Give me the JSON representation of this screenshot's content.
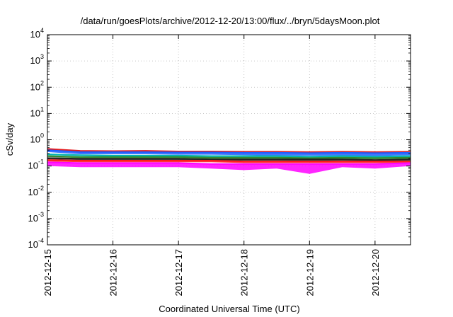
{
  "chart_data": {
    "type": "line",
    "title": "/data/run/goesPlots/archive/2012-12-20/13:00/flux/../bryn/5daysMoon.plot",
    "xlabel": "Coordinated Universal Time (UTC)",
    "ylabel": "cSv/day",
    "yscale": "log",
    "ylim": [
      0.0001,
      10000
    ],
    "xlim": [
      "2012-12-15T00:00",
      "2012-12-20T13:00"
    ],
    "grid": true,
    "x_ticks": [
      "2012-12-15",
      "2012-12-16",
      "2012-12-17",
      "2012-12-18",
      "2012-12-19",
      "2012-12-20"
    ],
    "y_ticks": [
      {
        "base": "10",
        "exp": "-4",
        "value": 0.0001
      },
      {
        "base": "10",
        "exp": "-3",
        "value": 0.001
      },
      {
        "base": "10",
        "exp": "-2",
        "value": 0.01
      },
      {
        "base": "10",
        "exp": "-1",
        "value": 0.1
      },
      {
        "base": "10",
        "exp": "0",
        "value": 1
      },
      {
        "base": "10",
        "exp": "1",
        "value": 10
      },
      {
        "base": "10",
        "exp": "2",
        "value": 100
      },
      {
        "base": "10",
        "exp": "3",
        "value": 1000
      },
      {
        "base": "10",
        "exp": "4",
        "value": 10000
      }
    ],
    "x": [
      "2012-12-15T00:00",
      "2012-12-15T12:00",
      "2012-12-16T00:00",
      "2012-12-16T12:00",
      "2012-12-17T00:00",
      "2012-12-17T12:00",
      "2012-12-18T00:00",
      "2012-12-18T12:00",
      "2012-12-19T00:00",
      "2012-12-19T12:00",
      "2012-12-20T00:00",
      "2012-12-20T13:00"
    ],
    "series": [
      {
        "color": "#e41a1c",
        "values": [
          0.45,
          0.38,
          0.37,
          0.38,
          0.36,
          0.36,
          0.35,
          0.35,
          0.34,
          0.35,
          0.34,
          0.35
        ],
        "min": [
          0.4,
          0.33,
          0.33,
          0.33,
          0.32,
          0.32,
          0.31,
          0.3,
          0.3,
          0.3,
          0.29,
          0.31
        ]
      },
      {
        "color": "#1f5fff",
        "values": [
          0.4,
          0.34,
          0.34,
          0.34,
          0.33,
          0.33,
          0.32,
          0.32,
          0.31,
          0.32,
          0.31,
          0.32
        ],
        "min": [
          0.34,
          0.28,
          0.28,
          0.28,
          0.27,
          0.27,
          0.26,
          0.25,
          0.25,
          0.25,
          0.24,
          0.26
        ]
      },
      {
        "color": "#00b3b3",
        "values": [
          0.28,
          0.26,
          0.25,
          0.25,
          0.25,
          0.24,
          0.24,
          0.24,
          0.23,
          0.24,
          0.23,
          0.24
        ],
        "min": [
          0.26,
          0.24,
          0.23,
          0.23,
          0.23,
          0.22,
          0.22,
          0.22,
          0.21,
          0.22,
          0.21,
          0.22
        ]
      },
      {
        "color": "#2e8b2e",
        "values": [
          0.24,
          0.22,
          0.22,
          0.22,
          0.22,
          0.21,
          0.21,
          0.21,
          0.2,
          0.21,
          0.2,
          0.21
        ],
        "min": [
          0.22,
          0.2,
          0.2,
          0.2,
          0.2,
          0.19,
          0.19,
          0.19,
          0.18,
          0.19,
          0.18,
          0.19
        ]
      },
      {
        "color": "#222222",
        "values": [
          0.2,
          0.19,
          0.19,
          0.19,
          0.19,
          0.18,
          0.18,
          0.18,
          0.18,
          0.18,
          0.17,
          0.18
        ],
        "min": [
          0.18,
          0.17,
          0.17,
          0.17,
          0.17,
          0.16,
          0.16,
          0.16,
          0.15,
          0.16,
          0.15,
          0.16
        ]
      },
      {
        "color": "#ff1a1a",
        "values": [
          0.17,
          0.16,
          0.16,
          0.16,
          0.16,
          0.16,
          0.15,
          0.15,
          0.15,
          0.15,
          0.15,
          0.15
        ],
        "min": [
          0.15,
          0.14,
          0.14,
          0.14,
          0.14,
          0.14,
          0.13,
          0.13,
          0.13,
          0.13,
          0.13,
          0.13
        ]
      },
      {
        "color": "#ff00ff",
        "values": [
          0.14,
          0.13,
          0.13,
          0.13,
          0.13,
          0.12,
          0.12,
          0.12,
          0.12,
          0.12,
          0.12,
          0.13
        ],
        "min": [
          0.1,
          0.09,
          0.09,
          0.09,
          0.09,
          0.08,
          0.07,
          0.08,
          0.05,
          0.09,
          0.08,
          0.1
        ]
      }
    ]
  }
}
